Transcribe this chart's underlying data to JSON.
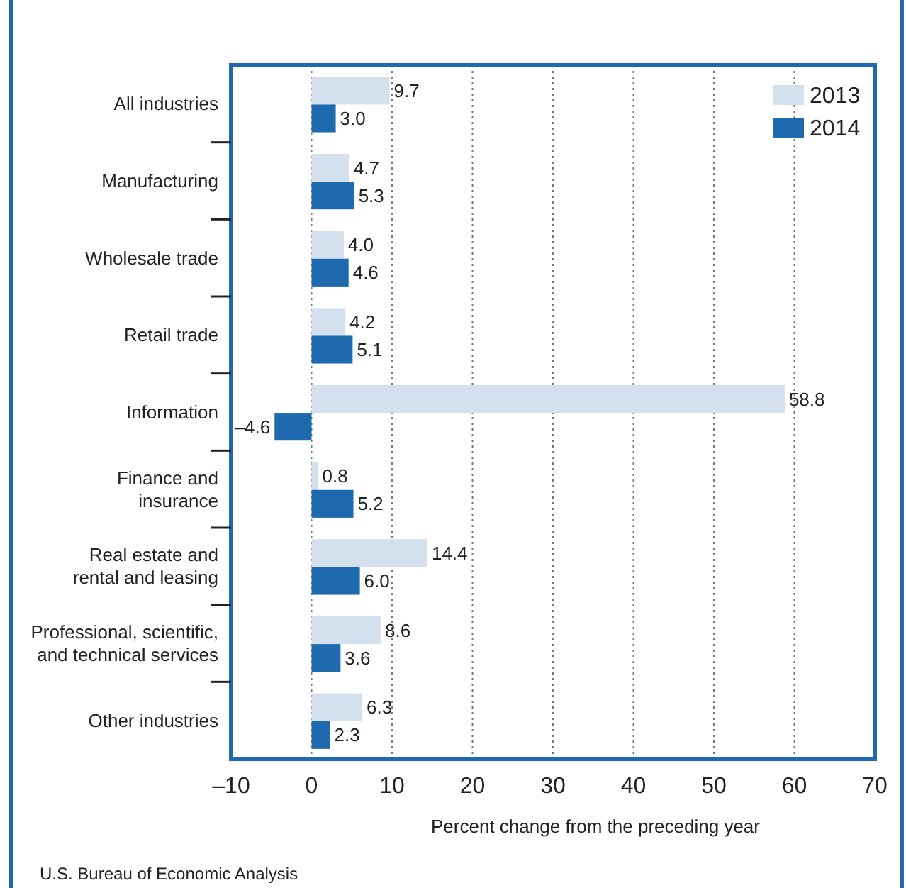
{
  "chart_data": {
    "type": "bar",
    "orientation": "horizontal",
    "categories": [
      "All industries",
      "Manufacturing",
      "Wholesale trade",
      "Retail trade",
      "Information",
      "Finance and\ninsurance",
      "Real estate and\nrental and leasing",
      "Professional, scientific,\nand technical services",
      "Other industries"
    ],
    "series": [
      {
        "name": "2013",
        "color": "#d5e0ee",
        "values": [
          9.7,
          4.7,
          4.0,
          4.2,
          58.8,
          0.8,
          14.4,
          8.6,
          6.3
        ],
        "value_labels": [
          "9.7",
          "4.7",
          "4.0",
          "4.2",
          "58.8",
          "0.8",
          "14.4",
          "8.6",
          "6.3"
        ]
      },
      {
        "name": "2014",
        "color": "#1f69ae",
        "values": [
          3.0,
          5.3,
          4.6,
          5.1,
          -4.6,
          5.2,
          6.0,
          3.6,
          2.3
        ],
        "value_labels": [
          "3.0",
          "5.3",
          "4.6",
          "5.1",
          "–4.6",
          "5.2",
          "6.0",
          "3.6",
          "2.3"
        ]
      }
    ],
    "xlim": [
      -10,
      70
    ],
    "xticks": [
      {
        "value": -10,
        "label": "–10"
      },
      0,
      10,
      20,
      30,
      40,
      50,
      60,
      70
    ],
    "xlabel": "Percent change from the preceding year",
    "grid": "x",
    "legend": "top right",
    "annotations": [
      "U.S. Bureau of Economic Analysis"
    ]
  }
}
